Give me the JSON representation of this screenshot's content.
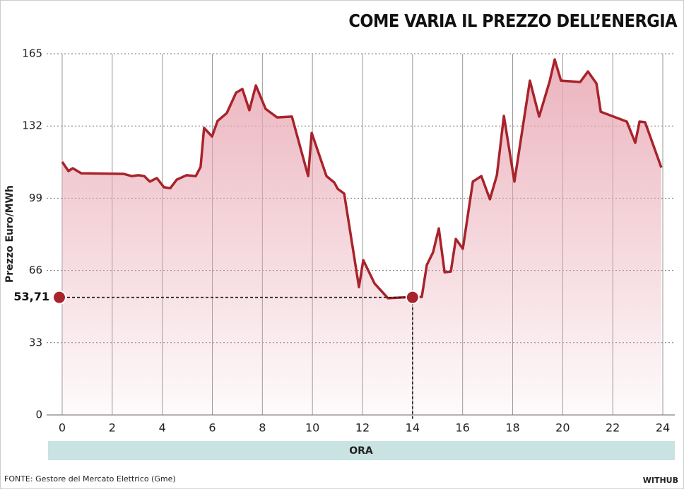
{
  "chart_data": {
    "type": "line",
    "title": "COME VARIA IL PREZZO DELL’ENERGIA",
    "y_label": "Prezzo Euro/MWh",
    "x_label": "ORA",
    "source": "FONTE: Gestore del Mercato Elettrico (Gme)",
    "brand": "WITHUB",
    "color": "#a8232b",
    "fill_color": "#e8a6b2",
    "xlim": [
      0,
      24
    ],
    "xticks": [
      0,
      2,
      4,
      6,
      8,
      10,
      12,
      14,
      16,
      18,
      20,
      22,
      24
    ],
    "ylim": [
      0,
      165
    ],
    "yticks": [
      0,
      33,
      66,
      99,
      132,
      165
    ],
    "grid": true,
    "highlight": {
      "x": 14,
      "value": 53.71,
      "label": "53,71"
    },
    "x": [
      0,
      0.25,
      0.42,
      0.76,
      2.46,
      2.77,
      3.05,
      3.28,
      3.5,
      3.78,
      4.07,
      4.32,
      4.58,
      4.97,
      5.34,
      5.53,
      5.67,
      5.99,
      6.21,
      6.58,
      6.95,
      7.2,
      7.48,
      7.74,
      8.13,
      8.59,
      9.18,
      9.83,
      9.97,
      10.56,
      10.87,
      11.01,
      11.27,
      11.86,
      12.03,
      12.48,
      13.02,
      13.98,
      14.37,
      14.57,
      14.82,
      15.05,
      15.28,
      15.53,
      15.73,
      16.01,
      16.41,
      16.75,
      17.09,
      17.37,
      17.65,
      18.07,
      18.69,
      19.06,
      19.48,
      19.68,
      19.93,
      20.7,
      21.01,
      21.35,
      21.52,
      22.56,
      22.9,
      23.07,
      23.29,
      23.94
    ],
    "values": [
      115.6,
      111.4,
      112.7,
      110.4,
      110.1,
      109.1,
      109.5,
      109.1,
      106.6,
      108.2,
      104.0,
      103.6,
      107.5,
      109.5,
      109.1,
      113.3,
      131.1,
      127.2,
      134.3,
      137.9,
      147.2,
      148.9,
      139.2,
      150.5,
      139.8,
      135.9,
      136.3,
      109.1,
      128.8,
      109.1,
      106.2,
      103.3,
      101.1,
      58.4,
      70.7,
      60.1,
      53.3,
      53.9,
      53.9,
      68.5,
      74.3,
      85.2,
      65.2,
      65.5,
      80.4,
      75.9,
      106.6,
      109.1,
      98.5,
      109.5,
      136.6,
      106.6,
      152.7,
      136.3,
      152.4,
      162.4,
      152.7,
      152.1,
      156.9,
      151.4,
      138.5,
      134.0,
      124.3,
      134.0,
      133.7,
      113.0
    ]
  }
}
